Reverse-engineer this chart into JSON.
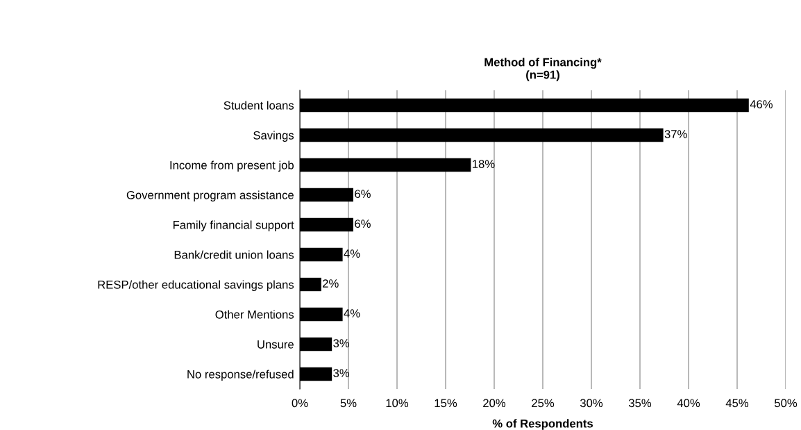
{
  "chart_data": {
    "type": "bar",
    "orientation": "horizontal",
    "title": "Method of Financing*\n(n=91)",
    "xlabel": "% of Respondents",
    "categories": [
      "Student loans",
      "Savings",
      "Income from present job",
      "Government program assistance",
      "Family financial support",
      "Bank/credit union loans",
      "RESP/other educational savings plans",
      "Other Mentions",
      "Unsure",
      "No response/refused"
    ],
    "values": [
      46.2,
      37.4,
      17.6,
      5.5,
      5.5,
      4.4,
      2.2,
      4.4,
      3.3,
      3.3
    ],
    "value_labels": [
      "46%",
      "37%",
      "18%",
      "6%",
      "6%",
      "4%",
      "2%",
      "4%",
      "3%",
      "3%"
    ],
    "color": "#000000",
    "xlim": [
      0,
      50
    ],
    "xticks": [
      {
        "value": 0,
        "label": "0%"
      },
      {
        "value": 5,
        "label": "5%"
      },
      {
        "value": 10,
        "label": "10%"
      },
      {
        "value": 15,
        "label": "15%"
      },
      {
        "value": 20,
        "label": "20%"
      },
      {
        "value": 25,
        "label": "25%"
      },
      {
        "value": 30,
        "label": "30%"
      },
      {
        "value": 35,
        "label": "35%"
      },
      {
        "value": 40,
        "label": "40%"
      },
      {
        "value": 45,
        "label": "45%"
      },
      {
        "value": 50,
        "label": "50%"
      }
    ],
    "grid": "x",
    "legend": false
  }
}
